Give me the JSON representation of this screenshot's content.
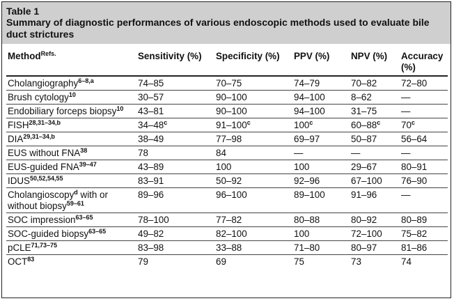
{
  "table_label": "Table 1",
  "caption": "Summary of diagnostic performances of various endoscopic methods used to evaluate bile duct strictures",
  "columns": [
    {
      "label": "Method",
      "sup": "Refs."
    },
    {
      "label": "Sensitivity (%)",
      "sup": ""
    },
    {
      "label": "Specificity (%)",
      "sup": ""
    },
    {
      "label": "PPV (%)",
      "sup": ""
    },
    {
      "label": "NPV (%)",
      "sup": ""
    },
    {
      "label": "Accuracy (%)",
      "sup": ""
    }
  ],
  "rows": [
    {
      "method": "Cholangiography",
      "ref": "6–8,a",
      "cells": [
        [
          "74–85",
          ""
        ],
        [
          "70–75",
          ""
        ],
        [
          "74–79",
          ""
        ],
        [
          "70–82",
          ""
        ],
        [
          "72–80",
          ""
        ]
      ]
    },
    {
      "method": "Brush cytology",
      "ref": "10",
      "cells": [
        [
          "30–57",
          ""
        ],
        [
          "90–100",
          ""
        ],
        [
          "94–100",
          ""
        ],
        [
          "8–62",
          ""
        ],
        [
          "—",
          ""
        ]
      ]
    },
    {
      "method": "Endobiliary forceps biopsy",
      "ref": "10",
      "cells": [
        [
          "43–81",
          ""
        ],
        [
          "90–100",
          ""
        ],
        [
          "94–100",
          ""
        ],
        [
          "31–75",
          ""
        ],
        [
          "—",
          ""
        ]
      ]
    },
    {
      "method": "FISH",
      "ref": "28,31–34,b",
      "cells": [
        [
          "34–48",
          "c"
        ],
        [
          "91–100",
          "c"
        ],
        [
          "100",
          "c"
        ],
        [
          "60–88",
          "c"
        ],
        [
          "70",
          "c"
        ]
      ]
    },
    {
      "method": "DIA",
      "ref": "29,31–34,b",
      "cells": [
        [
          "38–49",
          ""
        ],
        [
          "77–98",
          ""
        ],
        [
          "69–97",
          ""
        ],
        [
          "50–87",
          ""
        ],
        [
          "56–64",
          ""
        ]
      ]
    },
    {
      "method": "EUS without FNA",
      "ref": "38",
      "cells": [
        [
          "78",
          ""
        ],
        [
          "84",
          ""
        ],
        [
          "—",
          ""
        ],
        [
          "—",
          ""
        ],
        [
          "—",
          ""
        ]
      ]
    },
    {
      "method": "EUS-guided FNA",
      "ref": "39–47",
      "cells": [
        [
          "43–89",
          ""
        ],
        [
          "100",
          ""
        ],
        [
          "100",
          ""
        ],
        [
          "29–67",
          ""
        ],
        [
          "80–91",
          ""
        ]
      ]
    },
    {
      "method": "IDUS",
      "ref": "50,52,54,55",
      "cells": [
        [
          "83–91",
          ""
        ],
        [
          "50–92",
          ""
        ],
        [
          "92–96",
          ""
        ],
        [
          "67–100",
          ""
        ],
        [
          "76–90",
          ""
        ]
      ]
    },
    {
      "method": "Cholangioscopy",
      "method_sup": "d",
      "method_rest": " with or without biopsy",
      "ref": "59–61",
      "cells": [
        [
          "89–96",
          ""
        ],
        [
          "96–100",
          ""
        ],
        [
          "89–100",
          ""
        ],
        [
          "91–96",
          ""
        ],
        [
          "—",
          ""
        ]
      ]
    },
    {
      "method": "SOC impression",
      "ref": "63–65",
      "cells": [
        [
          "78–100",
          ""
        ],
        [
          "77–82",
          ""
        ],
        [
          "80–88",
          ""
        ],
        [
          "80–92",
          ""
        ],
        [
          "80–89",
          ""
        ]
      ]
    },
    {
      "method": "SOC-guided biopsy",
      "ref": "63–65",
      "cells": [
        [
          "49–82",
          ""
        ],
        [
          "82–100",
          ""
        ],
        [
          "100",
          ""
        ],
        [
          "72–100",
          ""
        ],
        [
          "75–82",
          ""
        ]
      ]
    },
    {
      "method": "pCLE",
      "ref": "71,73–75",
      "cells": [
        [
          "83–98",
          ""
        ],
        [
          "33–88",
          ""
        ],
        [
          "71–80",
          ""
        ],
        [
          "80–97",
          ""
        ],
        [
          "81–86",
          ""
        ]
      ]
    },
    {
      "method": "OCT",
      "ref": "83",
      "cells": [
        [
          "79",
          ""
        ],
        [
          "69",
          ""
        ],
        [
          "75",
          ""
        ],
        [
          "73",
          ""
        ],
        [
          "74",
          ""
        ]
      ]
    }
  ]
}
